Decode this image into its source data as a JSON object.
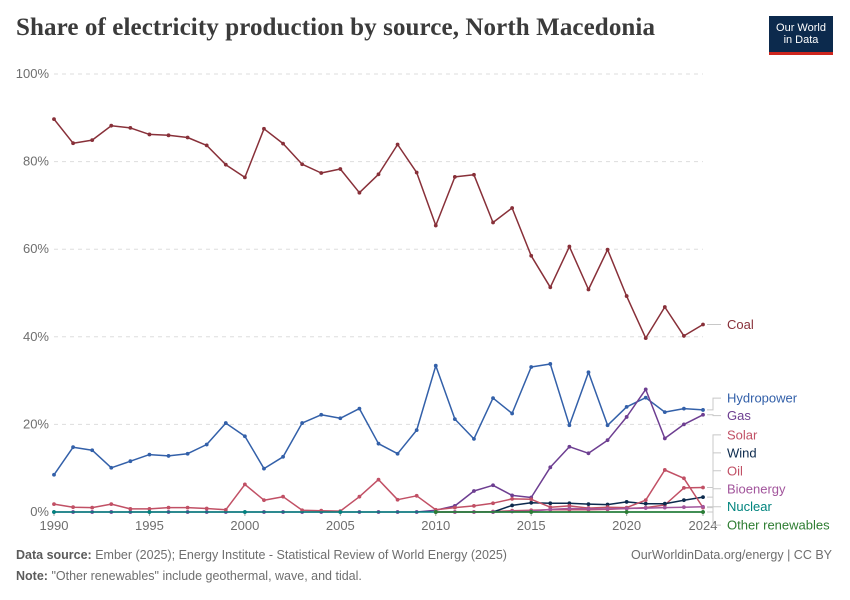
{
  "header": {
    "title": "Share of electricity production by source, North Macedonia",
    "logo_line1": "Our World",
    "logo_line2": "in Data"
  },
  "footer": {
    "source_label": "Data source:",
    "source_text": "Ember (2025); Energy Institute - Statistical Review of World Energy (2025)",
    "note_label": "Note:",
    "note_text": "\"Other renewables\" include geothermal, wave, and tidal.",
    "link": "OurWorldinData.org/energy | CC BY"
  },
  "chart_data": {
    "type": "line",
    "title": "Share of electricity production by source, North Macedonia",
    "xlabel": "",
    "ylabel": "",
    "xlim": [
      1990,
      2024
    ],
    "ylim": [
      0,
      100
    ],
    "grid": "horizontal dashed",
    "legend": "right, labels at line ends",
    "y_ticks": [
      0,
      20,
      40,
      60,
      80,
      100
    ],
    "y_tick_labels": [
      "0%",
      "20%",
      "40%",
      "60%",
      "80%",
      "100%"
    ],
    "x_ticks": [
      1990,
      1995,
      2000,
      2005,
      2010,
      2015,
      2020,
      2024
    ],
    "x_tick_labels": [
      "1990",
      "1995",
      "2000",
      "2005",
      "2010",
      "2015",
      "2020",
      "2024"
    ],
    "series": [
      {
        "name": "Coal",
        "color": "#883039",
        "label_y": 42.8,
        "points": [
          [
            1990,
            89.7
          ],
          [
            1991,
            84.2
          ],
          [
            1992,
            84.9
          ],
          [
            1993,
            88.2
          ],
          [
            1994,
            87.7
          ],
          [
            1995,
            86.2
          ],
          [
            1996,
            86.0
          ],
          [
            1997,
            85.5
          ],
          [
            1998,
            83.7
          ],
          [
            1999,
            79.3
          ],
          [
            2000,
            76.4
          ],
          [
            2001,
            87.5
          ],
          [
            2002,
            84.1
          ],
          [
            2003,
            79.4
          ],
          [
            2004,
            77.4
          ],
          [
            2005,
            78.3
          ],
          [
            2006,
            72.9
          ],
          [
            2007,
            77.1
          ],
          [
            2008,
            83.9
          ],
          [
            2009,
            77.5
          ],
          [
            2010,
            65.4
          ],
          [
            2011,
            76.5
          ],
          [
            2012,
            77.0
          ],
          [
            2013,
            66.1
          ],
          [
            2014,
            69.4
          ],
          [
            2015,
            58.5
          ],
          [
            2016,
            51.3
          ],
          [
            2017,
            60.6
          ],
          [
            2018,
            50.8
          ],
          [
            2019,
            59.9
          ],
          [
            2020,
            49.3
          ],
          [
            2021,
            39.7
          ],
          [
            2022,
            46.8
          ],
          [
            2023,
            40.2
          ],
          [
            2024,
            42.8
          ]
        ]
      },
      {
        "name": "Hydropower",
        "color": "#3360a9",
        "label_y": 26.0,
        "points": [
          [
            1990,
            8.5
          ],
          [
            1991,
            14.8
          ],
          [
            1992,
            14.1
          ],
          [
            1993,
            10.1
          ],
          [
            1994,
            11.6
          ],
          [
            1995,
            13.1
          ],
          [
            1996,
            12.8
          ],
          [
            1997,
            13.3
          ],
          [
            1998,
            15.4
          ],
          [
            1999,
            20.3
          ],
          [
            2000,
            17.3
          ],
          [
            2001,
            9.9
          ],
          [
            2002,
            12.6
          ],
          [
            2003,
            20.3
          ],
          [
            2004,
            22.2
          ],
          [
            2005,
            21.4
          ],
          [
            2006,
            23.6
          ],
          [
            2007,
            15.6
          ],
          [
            2008,
            13.3
          ],
          [
            2009,
            18.7
          ],
          [
            2010,
            33.4
          ],
          [
            2011,
            21.2
          ],
          [
            2012,
            16.7
          ],
          [
            2013,
            26.0
          ],
          [
            2014,
            22.5
          ],
          [
            2015,
            33.1
          ],
          [
            2016,
            33.8
          ],
          [
            2017,
            19.8
          ],
          [
            2018,
            31.9
          ],
          [
            2019,
            19.8
          ],
          [
            2020,
            24.0
          ],
          [
            2021,
            26.1
          ],
          [
            2022,
            22.8
          ],
          [
            2023,
            23.6
          ],
          [
            2024,
            23.3
          ]
        ]
      },
      {
        "name": "Gas",
        "color": "#6d3e91",
        "label_y": 22.0,
        "points": [
          [
            1990,
            0
          ],
          [
            1991,
            0
          ],
          [
            1992,
            0
          ],
          [
            1993,
            0
          ],
          [
            1994,
            0
          ],
          [
            1995,
            0
          ],
          [
            1996,
            0
          ],
          [
            1997,
            0
          ],
          [
            1998,
            0
          ],
          [
            1999,
            0
          ],
          [
            2000,
            0
          ],
          [
            2001,
            0
          ],
          [
            2002,
            0
          ],
          [
            2003,
            0
          ],
          [
            2004,
            0
          ],
          [
            2005,
            0
          ],
          [
            2006,
            0
          ],
          [
            2007,
            0
          ],
          [
            2008,
            0
          ],
          [
            2009,
            0
          ],
          [
            2010,
            0.4
          ],
          [
            2011,
            1.4
          ],
          [
            2012,
            4.8
          ],
          [
            2013,
            6.1
          ],
          [
            2014,
            3.8
          ],
          [
            2015,
            3.3
          ],
          [
            2016,
            10.2
          ],
          [
            2017,
            14.9
          ],
          [
            2018,
            13.4
          ],
          [
            2019,
            16.4
          ],
          [
            2020,
            21.7
          ],
          [
            2021,
            28.0
          ],
          [
            2022,
            16.8
          ],
          [
            2023,
            20.0
          ],
          [
            2024,
            22.2
          ]
        ]
      },
      {
        "name": "Solar",
        "color": "#c15065",
        "label_y": 17.6,
        "points": [
          [
            2010,
            0
          ],
          [
            2011,
            0
          ],
          [
            2012,
            0
          ],
          [
            2013,
            0.1
          ],
          [
            2014,
            0.3
          ],
          [
            2015,
            0.4
          ],
          [
            2016,
            0.5
          ],
          [
            2017,
            0.5
          ],
          [
            2018,
            0.5
          ],
          [
            2019,
            0.6
          ],
          [
            2020,
            0.8
          ],
          [
            2021,
            1.0
          ],
          [
            2022,
            1.6
          ],
          [
            2023,
            5.5
          ],
          [
            2024,
            5.6
          ]
        ]
      },
      {
        "name": "Wind",
        "color": "#0c2a4d",
        "label_y": 13.5,
        "points": [
          [
            2013,
            0
          ],
          [
            2014,
            1.5
          ],
          [
            2015,
            2.1
          ],
          [
            2016,
            2.0
          ],
          [
            2017,
            2.0
          ],
          [
            2018,
            1.8
          ],
          [
            2019,
            1.7
          ],
          [
            2020,
            2.3
          ],
          [
            2021,
            1.9
          ],
          [
            2022,
            1.9
          ],
          [
            2023,
            2.7
          ],
          [
            2024,
            3.4
          ]
        ]
      },
      {
        "name": "Oil",
        "color": "#c15065",
        "label_y": 9.4,
        "points": [
          [
            1990,
            1.8
          ],
          [
            1991,
            1.1
          ],
          [
            1992,
            1.0
          ],
          [
            1993,
            1.8
          ],
          [
            1994,
            0.7
          ],
          [
            1995,
            0.7
          ],
          [
            1996,
            1.0
          ],
          [
            1997,
            1.0
          ],
          [
            1998,
            0.8
          ],
          [
            1999,
            0.5
          ],
          [
            2000,
            6.3
          ],
          [
            2001,
            2.7
          ],
          [
            2002,
            3.5
          ],
          [
            2003,
            0.4
          ],
          [
            2004,
            0.3
          ],
          [
            2005,
            0.2
          ],
          [
            2006,
            3.5
          ],
          [
            2007,
            7.4
          ],
          [
            2008,
            2.8
          ],
          [
            2009,
            3.7
          ],
          [
            2010,
            0.5
          ],
          [
            2011,
            1.0
          ],
          [
            2012,
            1.4
          ],
          [
            2013,
            2.0
          ],
          [
            2014,
            3.0
          ],
          [
            2015,
            2.9
          ],
          [
            2016,
            1.1
          ],
          [
            2017,
            1.4
          ],
          [
            2018,
            0.9
          ],
          [
            2019,
            1.1
          ],
          [
            2020,
            1.0
          ],
          [
            2021,
            2.7
          ],
          [
            2022,
            9.6
          ],
          [
            2023,
            7.7
          ],
          [
            2024,
            1.0
          ]
        ]
      },
      {
        "name": "Bioenergy",
        "color": "#a2559c",
        "label_y": 5.3,
        "points": [
          [
            2010,
            0
          ],
          [
            2011,
            0
          ],
          [
            2012,
            0
          ],
          [
            2013,
            0
          ],
          [
            2014,
            0.1
          ],
          [
            2015,
            0.2
          ],
          [
            2016,
            0.6
          ],
          [
            2017,
            0.8
          ],
          [
            2018,
            0.7
          ],
          [
            2019,
            0.7
          ],
          [
            2020,
            0.8
          ],
          [
            2021,
            0.9
          ],
          [
            2022,
            1.0
          ],
          [
            2023,
            1.1
          ],
          [
            2024,
            1.2
          ]
        ]
      },
      {
        "name": "Nuclear",
        "color": "#00847e",
        "label_y": 1.2,
        "points": [
          [
            1990,
            0
          ],
          [
            1995,
            0
          ],
          [
            2000,
            0
          ],
          [
            2005,
            0
          ],
          [
            2010,
            0
          ],
          [
            2015,
            0
          ],
          [
            2020,
            0
          ],
          [
            2024,
            0
          ]
        ]
      },
      {
        "name": "Other renewables",
        "color": "#2e7d32",
        "label_y": -3.0,
        "points": [
          [
            2010,
            0
          ],
          [
            2015,
            0
          ],
          [
            2020,
            0
          ],
          [
            2024,
            0
          ]
        ]
      }
    ]
  }
}
